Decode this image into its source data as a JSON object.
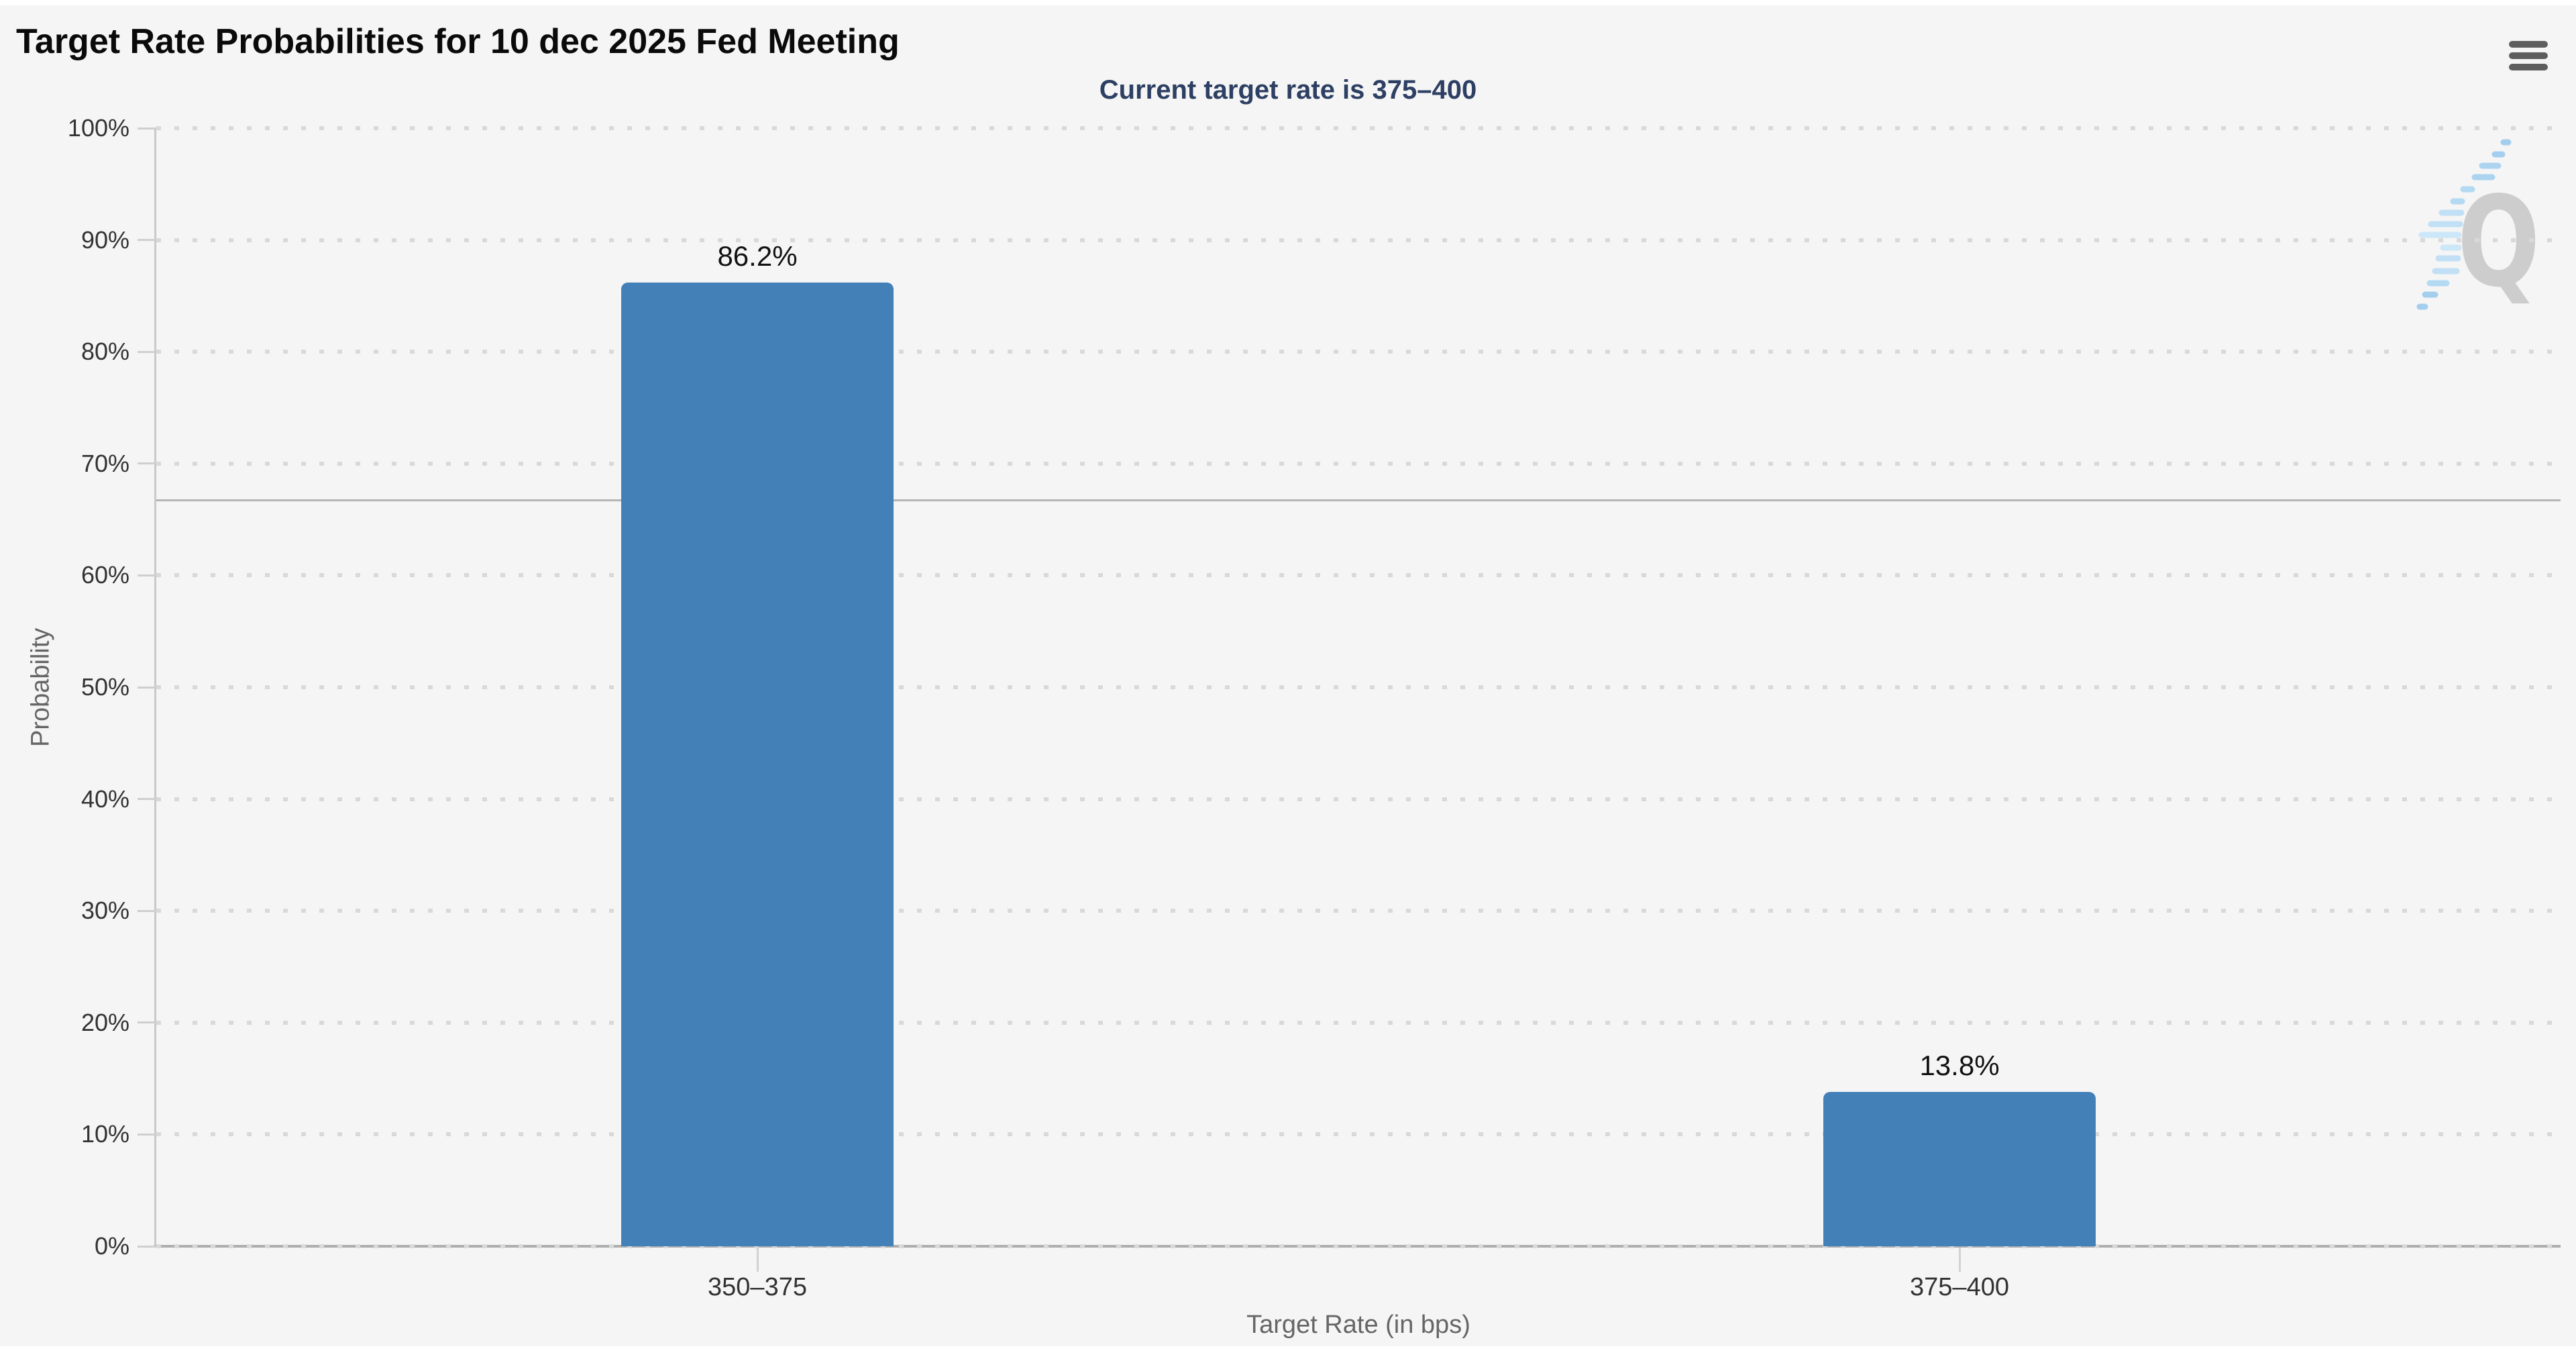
{
  "chart_data": {
    "type": "bar",
    "title": "Target Rate Probabilities for 10 dec 2025 Fed Meeting",
    "subtitle": "Current target rate is 375–400",
    "categories": [
      "350–375",
      "375–400"
    ],
    "values": [
      86.2,
      13.8
    ],
    "value_labels": [
      "86.2%",
      "13.8%"
    ],
    "xlabel": "Target Rate (in bps)",
    "ylabel": "Probability",
    "ylim": [
      0,
      100
    ],
    "ytick_labels": [
      "0%",
      "10%",
      "20%",
      "30%",
      "40%",
      "50%",
      "60%",
      "70%",
      "80%",
      "90%",
      "100%"
    ],
    "reference_line_pct": 66.7,
    "grid": "horizontal-dotted",
    "legend": "none",
    "bar_color": "#4380b8"
  },
  "icons": {
    "menu": "hamburger-icon",
    "watermark_letter": "Q"
  },
  "colors": {
    "chart_background": "#f5f5f5",
    "title_text": "#0a0a0a",
    "subtitle_text": "#2d3f63",
    "axis_title_text": "#666666",
    "tick_label_text": "#333333",
    "bar_fill": "#4380b8",
    "gridline_dots": "#d9d9d9",
    "watermark_gray": "#c9c9c9",
    "watermark_blue": "#aed6f2"
  }
}
